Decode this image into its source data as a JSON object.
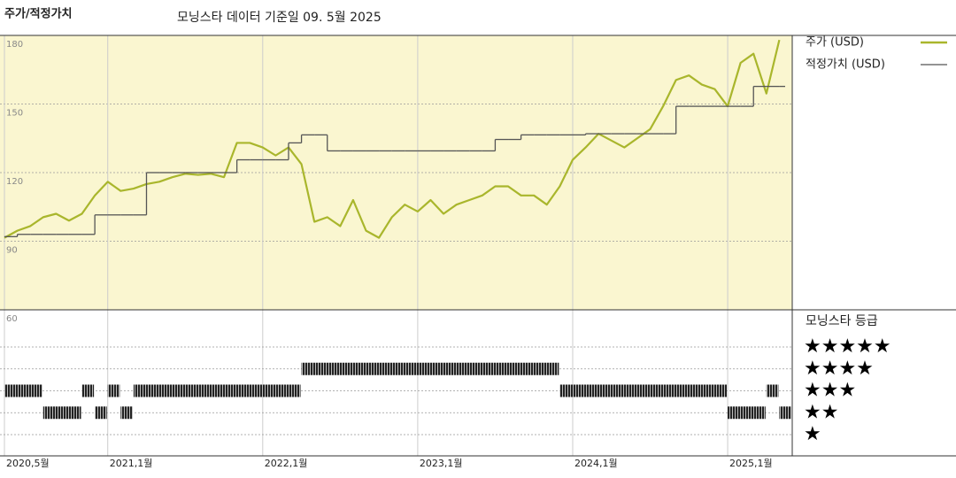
{
  "chart_data": {
    "type": "line",
    "title": "주가/적정가치",
    "subtitle": "모닝스타 데이터 기준일 09. 5월 2025",
    "x": [
      "2020-05",
      "2020-06",
      "2020-07",
      "2020-08",
      "2020-09",
      "2020-10",
      "2020-11",
      "2020-12",
      "2021-01",
      "2021-02",
      "2021-03",
      "2021-04",
      "2021-05",
      "2021-06",
      "2021-07",
      "2021-08",
      "2021-09",
      "2021-10",
      "2021-11",
      "2021-12",
      "2022-01",
      "2022-02",
      "2022-03",
      "2022-04",
      "2022-05",
      "2022-06",
      "2022-07",
      "2022-08",
      "2022-09",
      "2022-10",
      "2022-11",
      "2022-12",
      "2023-01",
      "2023-02",
      "2023-03",
      "2023-04",
      "2023-05",
      "2023-06",
      "2023-07",
      "2023-08",
      "2023-09",
      "2023-10",
      "2023-11",
      "2023-12",
      "2024-01",
      "2024-02",
      "2024-03",
      "2024-04",
      "2024-05",
      "2024-06",
      "2024-07",
      "2024-08",
      "2024-09",
      "2024-10",
      "2024-11",
      "2024-12",
      "2025-01",
      "2025-02",
      "2025-03",
      "2025-04",
      "2025-05"
    ],
    "series": [
      {
        "name": "주가 (USD)",
        "color": "#a9b62c",
        "step": false,
        "values": [
          91.5,
          94.6,
          96.6,
          100.5,
          102,
          99,
          102,
          110,
          116,
          112,
          113,
          115,
          116,
          118,
          119.5,
          119,
          119.5,
          118,
          133,
          133,
          131,
          127.5,
          131,
          123.7,
          98.5,
          100.5,
          96.6,
          108,
          94.6,
          91.5,
          100.5,
          106,
          103,
          108,
          102,
          106,
          108,
          110,
          114,
          114,
          110,
          110,
          106,
          114,
          125.6,
          131,
          137,
          134,
          131,
          135,
          139,
          149,
          160.5,
          162.5,
          158.5,
          156.5,
          149,
          168,
          172,
          154.6,
          178
        ]
      },
      {
        "name": "적정가치 (USD)",
        "color": "#555555",
        "step": true,
        "values": [
          92,
          93,
          93,
          93,
          93,
          93,
          93,
          101.5,
          101.5,
          101.5,
          101.5,
          120,
          120,
          120,
          120,
          120,
          120,
          120,
          125.6,
          125.6,
          125.6,
          125.6,
          133,
          136.5,
          136.5,
          129.5,
          129.5,
          129.5,
          129.5,
          129.5,
          129.5,
          129.5,
          129.5,
          129.5,
          129.5,
          129.5,
          129.5,
          129.5,
          134.5,
          134.5,
          136.5,
          136.5,
          136.5,
          136.5,
          136.5,
          137,
          137,
          137,
          137,
          137,
          137,
          137,
          149,
          149,
          149,
          149,
          149,
          149,
          157.7,
          157.7,
          157.7
        ]
      }
    ],
    "xlim": [
      "2020-05",
      "2025-06"
    ],
    "xticks": [
      {
        "value": "2020-05",
        "label": "2020,5월"
      },
      {
        "value": "2021-01",
        "label": "2021,1월"
      },
      {
        "value": "2022-01",
        "label": "2022,1월"
      },
      {
        "value": "2023-01",
        "label": "2023,1월"
      },
      {
        "value": "2024-01",
        "label": "2024,1월"
      },
      {
        "value": "2025-01",
        "label": "2025,1월"
      }
    ],
    "ylim": [
      60,
      180
    ],
    "yticks": [
      60,
      90,
      120,
      150,
      180
    ],
    "grid": true,
    "rating_title": "모닝스타 등급",
    "rating_levels": [
      5,
      4,
      3,
      2,
      1
    ],
    "star_labels": [
      "★★★★★",
      "★★★★",
      "★★★",
      "★★",
      "★"
    ],
    "ratings": [
      {
        "start": "2020-05",
        "end": "2020-08",
        "stars": 3
      },
      {
        "start": "2020-08",
        "end": "2020-11",
        "stars": 2
      },
      {
        "start": "2020-11",
        "end": "2020-12",
        "stars": 3
      },
      {
        "start": "2020-12",
        "end": "2021-01",
        "stars": 2
      },
      {
        "start": "2021-01",
        "end": "2021-02",
        "stars": 3
      },
      {
        "start": "2021-02",
        "end": "2021-03",
        "stars": 2
      },
      {
        "start": "2021-03",
        "end": "2022-04",
        "stars": 3
      },
      {
        "start": "2022-04",
        "end": "2023-12",
        "stars": 4
      },
      {
        "start": "2023-12",
        "end": "2025-01",
        "stars": 3
      },
      {
        "start": "2025-01",
        "end": "2025-04",
        "stars": 2
      },
      {
        "start": "2025-04",
        "end": "2025-05",
        "stars": 3
      },
      {
        "start": "2025-05",
        "end": "2025-06",
        "stars": 2
      }
    ]
  }
}
